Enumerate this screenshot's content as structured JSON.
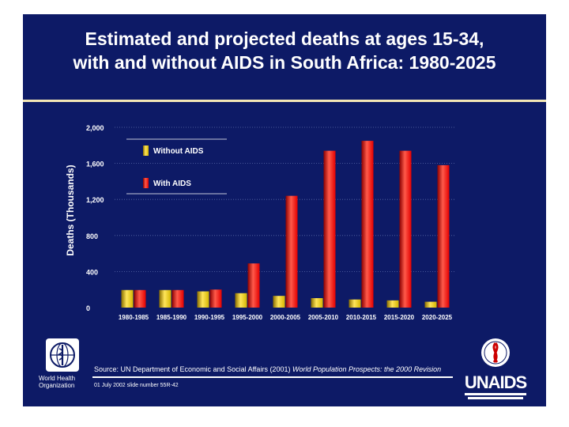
{
  "slide": {
    "title_line1": "Estimated and projected deaths at ages 15-34,",
    "title_line2": "with and without AIDS in South Africa: 1980-2025",
    "source_prefix": "Source:  UN Department of Economic and Social Affairs (2001)",
    "source_italic": "World Population Prospects: the 2000 Revision",
    "slide_code": "01 July 2002 slide number 55R-42",
    "who_logo_text": "World Health Organization",
    "unaids_word": "UNAIDS",
    "colors": {
      "background": "#0d1a66",
      "without_aids": "#d4b500",
      "with_aids": "#e30000"
    }
  },
  "chart_data": {
    "type": "bar",
    "title": "Estimated and projected deaths at ages 15-34, with and without AIDS in South Africa: 1980-2025",
    "xlabel": "",
    "ylabel": "Deaths (Thousands)",
    "ylim": [
      0,
      2000
    ],
    "yticks": [
      0,
      400,
      800,
      1200,
      1600,
      2000
    ],
    "ytick_labels": [
      "0",
      "400",
      "800",
      "1,200",
      "1,600",
      "2,000"
    ],
    "grid": true,
    "legend_position": "top-left",
    "categories": [
      "1980-1985",
      "1985-1990",
      "1990-1995",
      "1995-2000",
      "2000-2005",
      "2005-2010",
      "2010-2015",
      "2015-2020",
      "2020-2025"
    ],
    "series": [
      {
        "name": "Without AIDS",
        "values": [
          195,
          195,
          180,
          160,
          130,
          105,
          90,
          80,
          65
        ]
      },
      {
        "name": "With AIDS",
        "values": [
          195,
          195,
          200,
          490,
          1240,
          1740,
          1850,
          1740,
          1580
        ]
      }
    ]
  }
}
